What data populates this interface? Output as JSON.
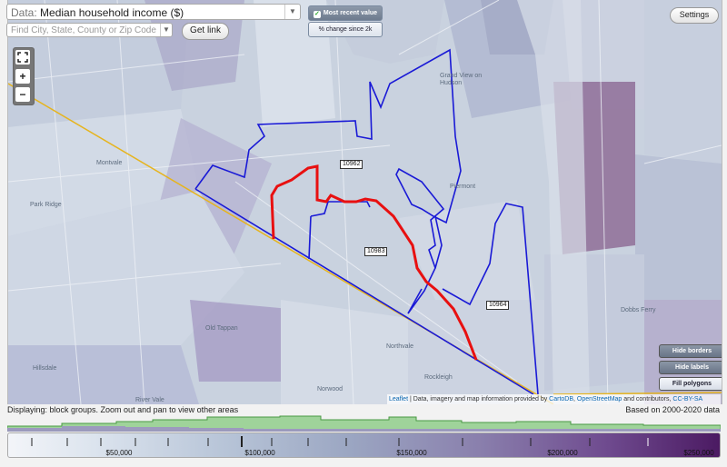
{
  "toolbar": {
    "data_label": "Data:",
    "data_value": "Median household income ($)",
    "search_placeholder": "Find City, State, County or Zip Code",
    "get_link_label": "Get link",
    "most_recent_label": "Most recent value",
    "change_label": "% change since 2k",
    "settings_label": "Settings"
  },
  "map": {
    "zoom_in": "+",
    "zoom_out": "−",
    "places": [
      "Grand View on Hudson",
      "Piermont",
      "Montvale",
      "Park Ridge",
      "Old Tappan",
      "Hillsdale",
      "Northvale",
      "Norwood",
      "Rockleigh",
      "River Vale",
      "Dobbs Ferry"
    ],
    "zip_labels": [
      "10962",
      "10983",
      "10964"
    ],
    "controls": {
      "hide_borders": "Hide borders",
      "hide_labels": "Hide labels",
      "fill_polygons": "Fill polygons"
    },
    "attribution": {
      "leaflet": "Leaflet",
      "text": "| Data, imagery and map information provided by",
      "carto": "CartoDB",
      "osm": "OpenStreetMap",
      "rest": "and contributors,",
      "license": "CC-BY-SA"
    },
    "colors": {
      "boundary": "#1a1ad6",
      "highlight": "#e81010",
      "road": "#e6b41e"
    }
  },
  "status": {
    "displaying": "Displaying: block groups. Zoom out and pan to view other areas",
    "based_on": "Based on 2000-2020 data"
  },
  "legend": {
    "ticks": [
      "$50,000",
      "$100,000",
      "$150,000",
      "$200,000",
      "$250,000"
    ]
  }
}
